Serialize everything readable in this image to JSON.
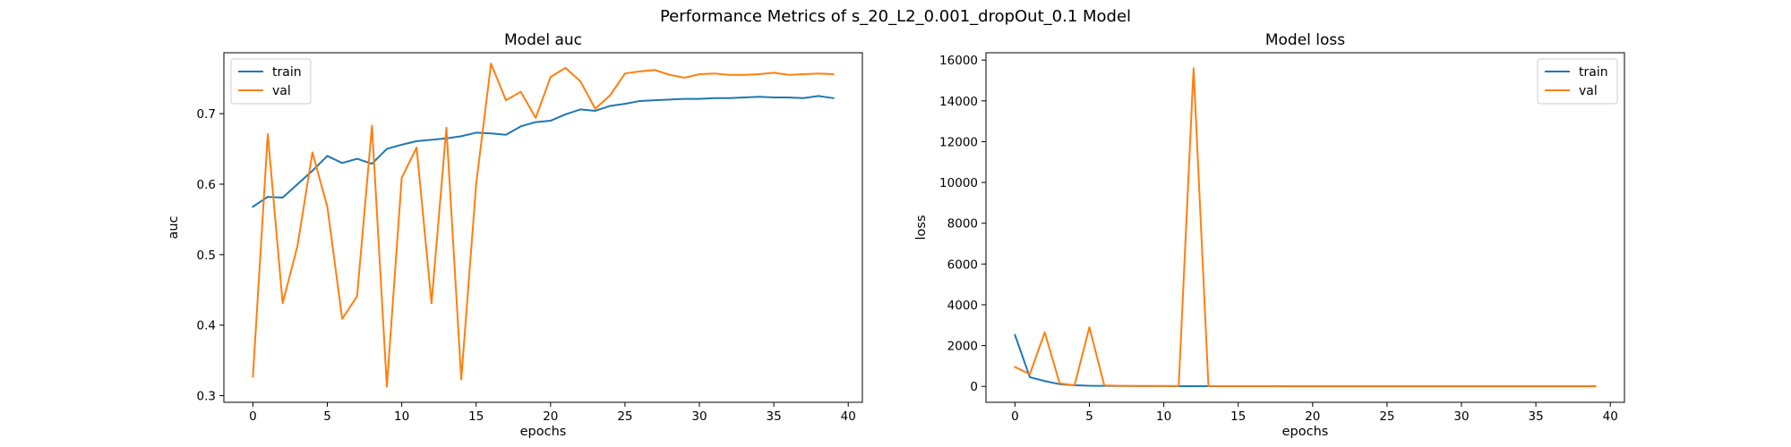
{
  "figure": {
    "suptitle": "Performance Metrics of s_20_L2_0.001_dropOut_0.1 Model"
  },
  "colors": {
    "train": "#1f77b4",
    "val": "#ff7f0e",
    "background": "#ffffff",
    "legend_border": "#cccccc"
  },
  "chart_data": [
    {
      "type": "line",
      "title": "Model auc",
      "xlabel": "epochs",
      "ylabel": "auc",
      "xlim": [
        -1.95,
        40.95
      ],
      "ylim": [
        0.2906,
        0.7864
      ],
      "xticks": [
        0,
        5,
        10,
        15,
        20,
        25,
        30,
        35,
        40
      ],
      "yticks": [
        0.3,
        0.4,
        0.5,
        0.6,
        0.7
      ],
      "ytick_labels": [
        "0.3",
        "0.4",
        "0.5",
        "0.6",
        "0.7"
      ],
      "legend": {
        "position": "top-left",
        "entries": [
          "train",
          "val"
        ]
      },
      "grid": false,
      "series": [
        {
          "name": "train",
          "x": [
            0,
            1,
            2,
            3,
            4,
            5,
            6,
            7,
            8,
            9,
            10,
            11,
            12,
            13,
            14,
            15,
            16,
            17,
            18,
            19,
            20,
            21,
            22,
            23,
            24,
            25,
            26,
            27,
            28,
            29,
            30,
            31,
            32,
            33,
            34,
            35,
            36,
            37,
            38,
            39
          ],
          "y": [
            0.568,
            0.582,
            0.581,
            0.6,
            0.619,
            0.64,
            0.63,
            0.636,
            0.629,
            0.65,
            0.656,
            0.661,
            0.663,
            0.665,
            0.668,
            0.673,
            0.672,
            0.67,
            0.682,
            0.688,
            0.69,
            0.699,
            0.706,
            0.704,
            0.711,
            0.714,
            0.718,
            0.719,
            0.72,
            0.721,
            0.721,
            0.722,
            0.722,
            0.723,
            0.724,
            0.723,
            0.723,
            0.722,
            0.725,
            0.722
          ]
        },
        {
          "name": "val",
          "x": [
            0,
            1,
            2,
            3,
            4,
            5,
            6,
            7,
            8,
            9,
            10,
            11,
            12,
            13,
            14,
            15,
            16,
            17,
            18,
            19,
            20,
            21,
            22,
            23,
            24,
            25,
            26,
            27,
            28,
            29,
            30,
            31,
            32,
            33,
            34,
            35,
            36,
            37,
            38,
            39
          ],
          "y": [
            0.327,
            0.671,
            0.431,
            0.513,
            0.645,
            0.568,
            0.409,
            0.441,
            0.683,
            0.313,
            0.609,
            0.652,
            0.431,
            0.68,
            0.323,
            0.6,
            0.771,
            0.719,
            0.731,
            0.694,
            0.752,
            0.765,
            0.746,
            0.707,
            0.726,
            0.757,
            0.76,
            0.762,
            0.755,
            0.751,
            0.756,
            0.757,
            0.755,
            0.755,
            0.756,
            0.758,
            0.755,
            0.756,
            0.757,
            0.756
          ]
        }
      ]
    },
    {
      "type": "line",
      "title": "Model loss",
      "xlabel": "epochs",
      "ylabel": "loss",
      "xlim": [
        -1.95,
        40.95
      ],
      "ylim": [
        -780,
        16360
      ],
      "xticks": [
        0,
        5,
        10,
        15,
        20,
        25,
        30,
        35,
        40
      ],
      "yticks": [
        0,
        2000,
        4000,
        6000,
        8000,
        10000,
        12000,
        14000,
        16000
      ],
      "ytick_labels": [
        "0",
        "2000",
        "4000",
        "6000",
        "8000",
        "10000",
        "12000",
        "14000",
        "16000"
      ],
      "legend": {
        "position": "top-right",
        "entries": [
          "train",
          "val"
        ]
      },
      "grid": false,
      "series": [
        {
          "name": "train",
          "x": [
            0,
            1,
            2,
            3,
            4,
            5,
            6,
            7,
            8,
            9,
            10,
            11,
            12,
            13,
            14,
            15,
            16,
            17,
            18,
            19,
            20,
            21,
            22,
            23,
            24,
            25,
            26,
            27,
            28,
            29,
            30,
            31,
            32,
            33,
            34,
            35,
            36,
            37,
            38,
            39
          ],
          "y": [
            2520,
            450,
            260,
            110,
            60,
            30,
            25,
            20,
            18,
            15,
            12,
            10,
            10,
            9,
            8,
            8,
            7,
            7,
            6,
            6,
            6,
            5,
            5,
            5,
            5,
            4,
            4,
            4,
            4,
            4,
            3,
            3,
            3,
            3,
            3,
            3,
            3,
            3,
            3,
            3
          ]
        },
        {
          "name": "val",
          "x": [
            0,
            1,
            2,
            3,
            4,
            5,
            6,
            7,
            8,
            9,
            10,
            11,
            12,
            13,
            14,
            15,
            16,
            17,
            18,
            19,
            20,
            21,
            22,
            23,
            24,
            25,
            26,
            27,
            28,
            29,
            30,
            31,
            32,
            33,
            34,
            35,
            36,
            37,
            38,
            39
          ],
          "y": [
            950,
            600,
            2650,
            150,
            50,
            2900,
            50,
            30,
            20,
            20,
            20,
            20,
            15600,
            20,
            15,
            15,
            15,
            15,
            15,
            15,
            15,
            15,
            15,
            15,
            15,
            15,
            15,
            15,
            15,
            15,
            15,
            15,
            15,
            15,
            15,
            15,
            15,
            15,
            15,
            15
          ]
        }
      ]
    }
  ]
}
